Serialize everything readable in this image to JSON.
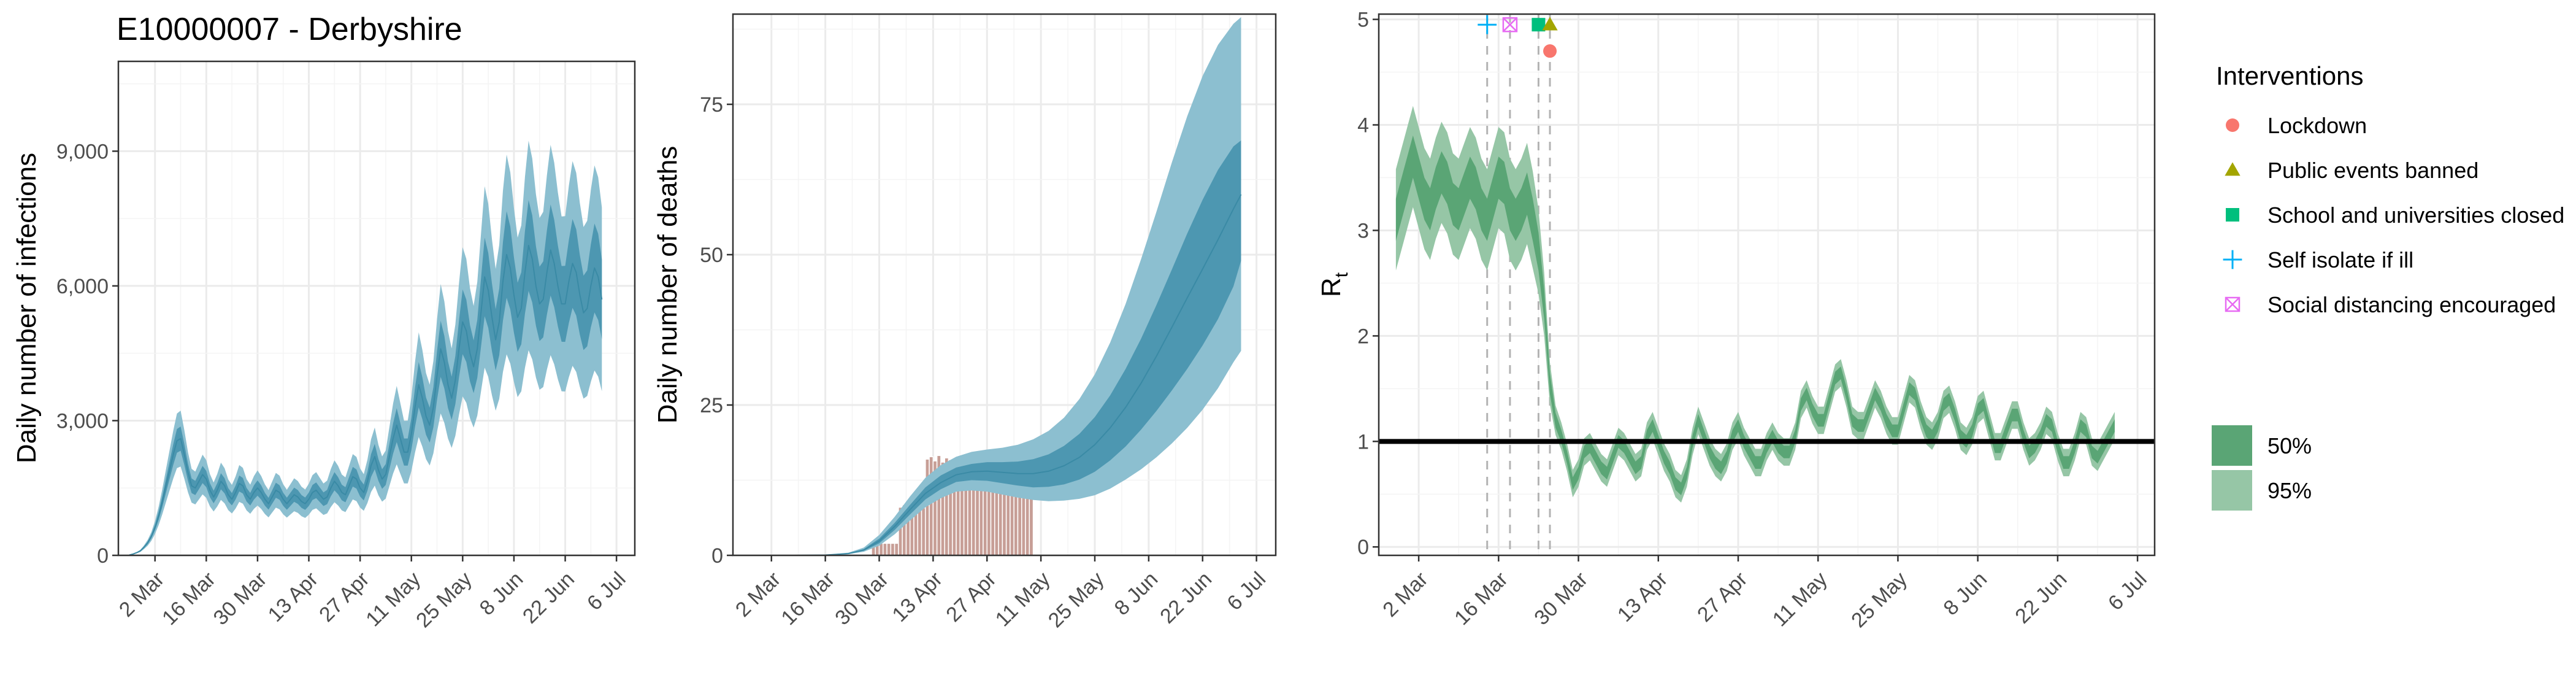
{
  "figure_title": "E10000007 - Derbyshire",
  "colors": {
    "infections_ci95": "#8cbfd0",
    "infections_ci50": "#4d97b1",
    "infections_median": "#3a8aa5",
    "deaths_bar": "#c79e96",
    "deaths_bar_edge": "#ffffff",
    "rt_ci95": "#96c6a6",
    "rt_ci50": "#5aa575",
    "grid": "#ebebeb",
    "panel_border": "#333333",
    "axis_text": "#4d4d4d",
    "threshold_line": "#000000",
    "intervention_dashed": "#b3b3b3",
    "lockdown": "#f8766d",
    "public_events_banned": "#a3a500",
    "school_closed": "#00bf7d",
    "self_isolate": "#00b0f6",
    "social_distancing": "#e76bf3"
  },
  "chart_data": [
    {
      "type": "area",
      "panel": "infections",
      "xlabel": "",
      "ylabel": "Daily number of infections",
      "x_ticks": [
        "2 Mar",
        "16 Mar",
        "30 Mar",
        "13 Apr",
        "27 Apr",
        "11 May",
        "25 May",
        "8 Jun",
        "22 Jun",
        "6 Jul"
      ],
      "x_tick_days": [
        0,
        14,
        28,
        42,
        56,
        70,
        84,
        98,
        112,
        126
      ],
      "xlim": [
        -10,
        131
      ],
      "ylim": [
        0,
        11000
      ],
      "y_ticks": [
        0,
        3000,
        6000,
        9000
      ],
      "y_tick_labels": [
        "0",
        "3,000",
        "6,000",
        "9,000"
      ],
      "series": [
        {
          "x_start_day": -7,
          "x_end_day": 122,
          "values": [
            10,
            30,
            60,
            100,
            180,
            280,
            420,
            620,
            880,
            1200,
            1550,
            1900,
            2250,
            2550,
            2600,
            2250,
            1850,
            1550,
            1500,
            1650,
            1800,
            1700,
            1450,
            1300,
            1450,
            1650,
            1550,
            1350,
            1250,
            1400,
            1600,
            1550,
            1350,
            1250,
            1400,
            1500,
            1400,
            1250,
            1150,
            1300,
            1450,
            1400,
            1250,
            1150,
            1250,
            1350,
            1300,
            1200,
            1150,
            1250,
            1400,
            1450,
            1350,
            1250,
            1300,
            1500,
            1650,
            1550,
            1400,
            1350,
            1550,
            1750,
            1700,
            1500,
            1400,
            1650,
            2000,
            2200,
            1900,
            1700,
            1800,
            2200,
            2600,
            2900,
            2600,
            2300,
            2300,
            2700,
            3300,
            3800,
            3500,
            3100,
            2900,
            3300,
            4000,
            4600,
            4300,
            3800,
            3500,
            3900,
            4600,
            5200,
            5000,
            4500,
            4200,
            4600,
            5400,
            6200,
            5900,
            5300,
            4800,
            5200,
            6100,
            6700,
            6400,
            5800,
            5300,
            5500,
            6300,
            6900,
            6600,
            6000,
            5600,
            5700,
            6300,
            6800,
            6500,
            6000,
            5600,
            5600,
            6100,
            6500,
            6300,
            5800,
            5400,
            5500,
            6000,
            6400,
            6200,
            5700
          ],
          "ci50_frac": 0.13,
          "ci95_frac": 0.3
        }
      ]
    },
    {
      "type": "bar",
      "panel": "deaths",
      "xlabel": "",
      "ylabel": "Daily number of deaths",
      "x_ticks": [
        "2 Mar",
        "16 Mar",
        "30 Mar",
        "13 Apr",
        "27 Apr",
        "11 May",
        "25 May",
        "8 Jun",
        "22 Jun",
        "6 Jul"
      ],
      "x_tick_days": [
        0,
        14,
        28,
        42,
        56,
        70,
        84,
        98,
        112,
        126
      ],
      "xlim": [
        -10,
        131
      ],
      "ylim": [
        0,
        90
      ],
      "y_ticks": [
        0,
        25,
        50,
        75
      ],
      "y_tick_labels": [
        "0",
        "25",
        "50",
        "75"
      ],
      "observed_deaths_weekly": [
        {
          "start_day": 26,
          "end_day": 33,
          "value": 2
        },
        {
          "start_day": 33,
          "end_day": 40,
          "value": 8
        },
        {
          "start_day": 40,
          "end_day": 47,
          "value": 16
        },
        {
          "start_day": 47,
          "end_day": 54,
          "value": 15
        },
        {
          "start_day": 54,
          "end_day": 61,
          "value": 13
        },
        {
          "start_day": 61,
          "end_day": 68,
          "value": 11
        }
      ],
      "series": [
        {
          "x_start_day": 6,
          "x_end_day": 122,
          "day_points": [
            6,
            14,
            20,
            24,
            28,
            32,
            36,
            40,
            44,
            48,
            52,
            56,
            60,
            64,
            68,
            72,
            76,
            80,
            84,
            88,
            92,
            96,
            100,
            104,
            108,
            112,
            116,
            120,
            122
          ],
          "median": [
            0,
            0.05,
            0.3,
            0.9,
            2.4,
            4.8,
            7.6,
            10.3,
            12.1,
            13.4,
            13.9,
            14.0,
            13.8,
            13.6,
            13.6,
            14.0,
            14.9,
            16.3,
            18.4,
            21.2,
            24.6,
            28.6,
            33.1,
            37.9,
            42.8,
            47.6,
            52.5,
            57.6,
            60
          ],
          "ci50_low": [
            0,
            0.04,
            0.26,
            0.75,
            2.0,
            4.2,
            6.8,
            9.3,
            11.0,
            12.2,
            12.5,
            12.4,
            12.0,
            11.6,
            11.3,
            11.4,
            11.8,
            12.6,
            13.9,
            15.8,
            18.1,
            20.9,
            24.0,
            27.4,
            31.0,
            34.9,
            39.3,
            44.7,
            49
          ],
          "ci50_high": [
            0,
            0.06,
            0.34,
            1.05,
            2.8,
            5.4,
            8.4,
            11.3,
            13.3,
            14.6,
            15.2,
            15.5,
            15.5,
            15.6,
            16.0,
            16.8,
            18.2,
            20.2,
            23.0,
            26.6,
            31.0,
            36.0,
            41.6,
            47.5,
            53.5,
            59.1,
            64.1,
            68.0,
            69
          ],
          "ci95_low": [
            0,
            0.02,
            0.2,
            0.6,
            1.6,
            3.5,
            5.8,
            8.0,
            9.5,
            10.6,
            10.8,
            10.6,
            10.1,
            9.6,
            9.2,
            9.0,
            9.1,
            9.4,
            10.0,
            11.1,
            12.6,
            14.3,
            16.3,
            18.6,
            21.2,
            24.2,
            27.8,
            32.1,
            34
          ],
          "ci95_high": [
            0,
            0.08,
            0.45,
            1.3,
            3.4,
            6.4,
            9.8,
            12.9,
            15.0,
            16.4,
            17.2,
            17.6,
            17.9,
            18.4,
            19.3,
            20.7,
            22.9,
            26.0,
            30.1,
            35.4,
            41.8,
            49.2,
            57.1,
            65.3,
            73.0,
            79.7,
            84.9,
            88.4,
            89.5
          ]
        }
      ]
    },
    {
      "type": "area",
      "panel": "rt",
      "xlabel": "",
      "ylabel": "R",
      "ylabel_subscript": "t",
      "x_ticks": [
        "2 Mar",
        "16 Mar",
        "30 Mar",
        "13 Apr",
        "27 Apr",
        "11 May",
        "25 May",
        "8 Jun",
        "22 Jun",
        "6 Jul"
      ],
      "x_tick_days": [
        0,
        14,
        28,
        42,
        56,
        70,
        84,
        98,
        112,
        126
      ],
      "xlim": [
        -7,
        129
      ],
      "ylim": [
        -0.08,
        5.05
      ],
      "y_ticks": [
        0,
        1,
        2,
        3,
        4,
        5
      ],
      "y_tick_labels": [
        "0",
        "1",
        "2",
        "3",
        "4",
        "5"
      ],
      "reference_line": 1,
      "series": [
        {
          "x_start_day": -4,
          "x_end_day": 122,
          "values": [
            3.1,
            3.3,
            3.5,
            3.7,
            3.5,
            3.3,
            3.2,
            3.4,
            3.55,
            3.45,
            3.25,
            3.2,
            3.35,
            3.5,
            3.4,
            3.2,
            3.1,
            3.3,
            3.5,
            3.45,
            3.2,
            3.1,
            3.2,
            3.35,
            3.1,
            2.8,
            2.3,
            1.55,
            1.2,
            1.05,
            0.85,
            0.6,
            0.7,
            0.9,
            0.95,
            0.85,
            0.75,
            0.7,
            0.85,
            1.0,
            0.95,
            0.85,
            0.75,
            0.8,
            1.05,
            1.15,
            1.0,
            0.85,
            0.75,
            0.6,
            0.55,
            0.7,
            1.0,
            1.2,
            1.05,
            0.9,
            0.8,
            0.75,
            0.85,
            1.05,
            1.15,
            1.0,
            0.9,
            0.8,
            0.8,
            0.95,
            1.05,
            0.95,
            0.9,
            0.9,
            1.05,
            1.35,
            1.45,
            1.3,
            1.2,
            1.2,
            1.4,
            1.6,
            1.65,
            1.45,
            1.2,
            1.15,
            1.15,
            1.3,
            1.45,
            1.35,
            1.2,
            1.1,
            1.1,
            1.3,
            1.5,
            1.45,
            1.25,
            1.1,
            1.05,
            1.15,
            1.35,
            1.4,
            1.25,
            1.05,
            1.0,
            1.1,
            1.3,
            1.35,
            1.15,
            0.95,
            0.95,
            1.1,
            1.25,
            1.25,
            1.05,
            0.9,
            0.95,
            1.05,
            1.2,
            1.15,
            0.95,
            0.8,
            0.8,
            0.95,
            1.15,
            1.1,
            0.9,
            0.85,
            0.95,
            1.05,
            1.15
          ],
          "ci50_halfwidth": [
            0.2,
            0.2,
            0.2,
            0.2,
            0.2,
            0.2,
            0.2,
            0.2,
            0.2,
            0.2,
            0.2,
            0.2,
            0.2,
            0.2,
            0.2,
            0.2,
            0.2,
            0.2,
            0.2,
            0.2,
            0.2,
            0.2,
            0.2,
            0.2,
            0.2,
            0.18,
            0.14,
            0.1,
            0.07
          ],
          "ci95_halfwidth": [
            0.48,
            0.48,
            0.48,
            0.48,
            0.48,
            0.48,
            0.48,
            0.48,
            0.48,
            0.48,
            0.48,
            0.48,
            0.48,
            0.48,
            0.48,
            0.48,
            0.48,
            0.48,
            0.48,
            0.48,
            0.48,
            0.48,
            0.48,
            0.48,
            0.46,
            0.4,
            0.3,
            0.2,
            0.14
          ],
          "tail_ci50_halfwidth": 0.06,
          "tail_ci95_halfwidth": 0.13
        }
      ],
      "interventions": [
        {
          "key": "self_isolate",
          "day": 12,
          "y": 4.95,
          "shape": "plus"
        },
        {
          "key": "social_distancing",
          "day": 16,
          "y": 4.95,
          "shape": "square_x"
        },
        {
          "key": "school_closed",
          "day": 21,
          "y": 4.95,
          "shape": "square"
        },
        {
          "key": "public_events_banned",
          "day": 23,
          "y": 4.95,
          "shape": "triangle"
        },
        {
          "key": "lockdown",
          "day": 23,
          "y": 4.7,
          "shape": "circle"
        }
      ]
    }
  ],
  "legend": {
    "interventions_title": "Interventions",
    "items": [
      {
        "key": "lockdown",
        "label": "Lockdown",
        "shape": "circle"
      },
      {
        "key": "public_events_banned",
        "label": "Public events banned",
        "shape": "triangle"
      },
      {
        "key": "school_closed",
        "label": "School and universities closed",
        "shape": "square"
      },
      {
        "key": "self_isolate",
        "label": "Self isolate if ill",
        "shape": "plus"
      },
      {
        "key": "social_distancing",
        "label": "Social distancing encouraged",
        "shape": "square_x"
      }
    ],
    "ci_items": [
      {
        "label": "50%",
        "color_key": "rt_ci50"
      },
      {
        "label": "95%",
        "color_key": "rt_ci95"
      }
    ]
  }
}
